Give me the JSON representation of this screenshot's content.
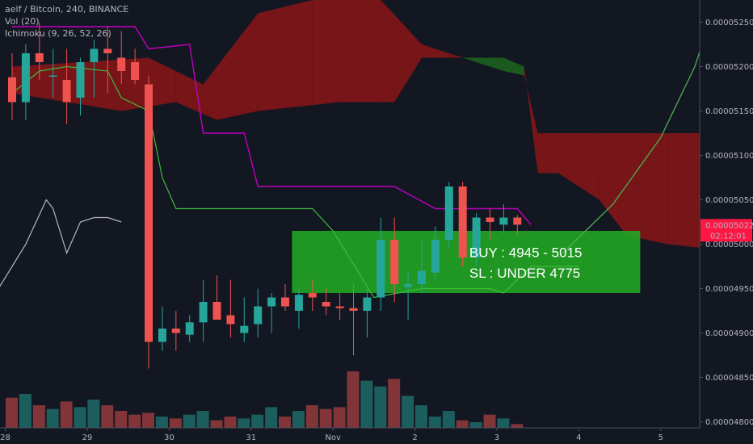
{
  "legend": {
    "symbol": "aelf / Bitcoin, 240, BINANCE",
    "vol": "Vol (20)",
    "ichimoku": "Ichimoku (9, 26, 52, 26)"
  },
  "colors": {
    "background": "#131722",
    "up": "#26a69a",
    "down": "#ef5350",
    "cloud_bear": "#7c1518",
    "cloud_bull": "#1b5e20",
    "tenkan": "#c000c0",
    "kijun": "#3cbc3c",
    "chikou": "#b2b5be",
    "zone": "#23a523",
    "price_tag": "#ff1744",
    "lagging": "#4caf50"
  },
  "chart_data": {
    "type": "candlestick",
    "symbol": "aelf / Bitcoin",
    "timeframe": "240",
    "exchange": "BINANCE",
    "y_axis": {
      "ylim": [
        4.795e-05,
        5.275e-05
      ],
      "ticks": [
        "0.00004800",
        "0.00004850",
        "0.00004900",
        "0.00004950",
        "0.00005000",
        "0.00005050",
        "0.00005100",
        "0.00005150",
        "0.00005200",
        "0.00005250"
      ]
    },
    "x_axis": {
      "ticks": [
        {
          "label": "28",
          "i": -0.5
        },
        {
          "label": "29",
          "i": 5.5
        },
        {
          "label": "30",
          "i": 11.5
        },
        {
          "label": "31",
          "i": 17.5
        },
        {
          "label": "Nov",
          "i": 23.5
        },
        {
          "label": "2",
          "i": 29.5
        },
        {
          "label": "3",
          "i": 35.5
        },
        {
          "label": "4",
          "i": 41.5
        },
        {
          "label": "5",
          "i": 47.5
        }
      ]
    },
    "current_price": {
      "value": 5.022e-05,
      "label": "0.00005022",
      "countdown": "02:12:01"
    },
    "candles": [
      [
        5.188e-05,
        5.215e-05,
        5.14e-05,
        5.16e-05
      ],
      [
        5.16e-05,
        5.225e-05,
        5.14e-05,
        5.215e-05
      ],
      [
        5.215e-05,
        5.25e-05,
        5.185e-05,
        5.205e-05
      ],
      [
        5.19e-05,
        5.22e-05,
        5.165e-05,
        5.19e-05
      ],
      [
        5.185e-05,
        5.22e-05,
        5.135e-05,
        5.16e-05
      ],
      [
        5.165e-05,
        5.21e-05,
        5.145e-05,
        5.205e-05
      ],
      [
        5.205e-05,
        5.23e-05,
        5.165e-05,
        5.22e-05
      ],
      [
        5.22e-05,
        5.245e-05,
        5.17e-05,
        5.215e-05
      ],
      [
        5.21e-05,
        5.24e-05,
        5.18e-05,
        5.195e-05
      ],
      [
        5.205e-05,
        5.22e-05,
        5.18e-05,
        5.185e-05
      ],
      [
        5.18e-05,
        5.19e-05,
        4.86e-05,
        4.89e-05
      ],
      [
        4.89e-05,
        4.93e-05,
        4.88e-05,
        4.905e-05
      ],
      [
        4.905e-05,
        4.925e-05,
        4.88e-05,
        4.9e-05
      ],
      [
        4.898e-05,
        4.92e-05,
        4.89e-05,
        4.912e-05
      ],
      [
        4.912e-05,
        4.96e-05,
        4.89e-05,
        4.935e-05
      ],
      [
        4.935e-05,
        4.965e-05,
        4.915e-05,
        4.915e-05
      ],
      [
        4.92e-05,
        4.96e-05,
        4.895e-05,
        4.91e-05
      ],
      [
        4.9e-05,
        4.94e-05,
        4.89e-05,
        4.908e-05
      ],
      [
        4.91e-05,
        4.95e-05,
        4.895e-05,
        4.93e-05
      ],
      [
        4.93e-05,
        4.945e-05,
        4.9e-05,
        4.94e-05
      ],
      [
        4.94e-05,
        4.955e-05,
        4.925e-05,
        4.93e-05
      ],
      [
        4.925e-05,
        4.95e-05,
        4.905e-05,
        4.943e-05
      ],
      [
        4.945e-05,
        4.96e-05,
        4.925e-05,
        4.94e-05
      ],
      [
        4.935e-05,
        4.95e-05,
        4.92e-05,
        4.93e-05
      ],
      [
        4.93e-05,
        4.945e-05,
        4.915e-05,
        4.928e-05
      ],
      [
        4.928e-05,
        4.955e-05,
        4.875e-05,
        4.925e-05
      ],
      [
        4.925e-05,
        4.95e-05,
        4.895e-05,
        4.94e-05
      ],
      [
        4.94e-05,
        5.03e-05,
        4.925e-05,
        5.005e-05
      ],
      [
        5.005e-05,
        5.03e-05,
        4.935e-05,
        4.955e-05
      ],
      [
        4.952e-05,
        4.97e-05,
        4.915e-05,
        4.955e-05
      ],
      [
        4.955e-05,
        5.005e-05,
        4.945e-05,
        4.97e-05
      ],
      [
        4.968e-05,
        5.02e-05,
        4.96e-05,
        5.005e-05
      ],
      [
        5.005e-05,
        5.07e-05,
        4.995e-05,
        5.065e-05
      ],
      [
        5.065e-05,
        5.07e-05,
        4.975e-05,
        4.985e-05
      ],
      [
        4.985e-05,
        5.035e-05,
        4.975e-05,
        5.03e-05
      ],
      [
        5.03e-05,
        5.04e-05,
        5.005e-05,
        5.025e-05
      ],
      [
        5.022e-05,
        5.045e-05,
        5.012e-05,
        5.03e-05
      ],
      [
        5.03e-05,
        5.033e-05,
        5.01e-05,
        5.022e-05
      ]
    ],
    "volume": [
      16,
      18,
      12,
      10,
      14,
      11,
      15,
      12,
      9,
      7,
      8,
      6,
      5,
      7,
      9,
      4,
      6,
      5,
      7,
      11,
      6,
      9,
      12,
      10,
      11,
      30,
      25,
      22,
      26,
      17,
      12,
      6,
      9,
      4,
      3,
      7,
      5,
      2
    ],
    "tenkan": [
      [
        0,
        5.245e-05
      ],
      [
        9,
        5.245e-05
      ],
      [
        10,
        5.22e-05
      ],
      [
        13,
        5.225e-05
      ],
      [
        14,
        5.125e-05
      ],
      [
        17,
        5.125e-05
      ],
      [
        18,
        5.065e-05
      ],
      [
        28,
        5.065e-05
      ],
      [
        31,
        5.04e-05
      ],
      [
        37,
        5.04e-05
      ],
      [
        38,
        5.022e-05
      ]
    ],
    "kijun": [
      [
        0,
        5.17e-05
      ],
      [
        2,
        5.195e-05
      ],
      [
        4,
        5.2e-05
      ],
      [
        7,
        5.195e-05
      ],
      [
        8,
        5.165e-05
      ],
      [
        10,
        5.15e-05
      ],
      [
        11,
        5.075e-05
      ],
      [
        12,
        5.04e-05
      ],
      [
        16,
        5.04e-05
      ],
      [
        22,
        5.04e-05
      ],
      [
        23.5,
        5.015e-05
      ],
      [
        26.5,
        4.94e-05
      ],
      [
        30,
        4.95e-05
      ],
      [
        35,
        4.95e-05
      ],
      [
        36,
        4.945e-05
      ],
      [
        38,
        4.975e-05
      ],
      [
        41.5,
        4.975e-05
      ]
    ],
    "chikou": [
      [
        -2,
        4.94e-05
      ],
      [
        -1,
        4.95e-05
      ],
      [
        0,
        4.975e-05
      ],
      [
        1,
        5e-05
      ],
      [
        2.5,
        5.05e-05
      ],
      [
        3,
        5.04e-05
      ],
      [
        4,
        4.99e-05
      ],
      [
        5,
        5.025e-05
      ],
      [
        6,
        5.03e-05
      ],
      [
        7,
        5.03e-05
      ],
      [
        8,
        5.025e-05
      ]
    ],
    "lagging_curve": [
      [
        40,
        4.985e-05
      ],
      [
        44,
        5.045e-05
      ],
      [
        47.5,
        5.12e-05
      ],
      [
        50,
        5.2e-05
      ],
      [
        51.5,
        5.27e-05
      ]
    ],
    "cloud": {
      "span_a": [
        [
          0,
          5.2e-05
        ],
        [
          10,
          5.21e-05
        ],
        [
          14,
          5.18e-05
        ],
        [
          18,
          5.26e-05
        ],
        [
          22,
          5.275e-05
        ],
        [
          27,
          5.275e-05
        ],
        [
          30,
          5.225e-05
        ],
        [
          33,
          5.21e-05
        ],
        [
          36,
          5.195e-05
        ],
        [
          37.5,
          5.19e-05
        ],
        [
          38.5,
          5.125e-05
        ],
        [
          46,
          5.125e-05
        ],
        [
          54,
          5.125e-05
        ]
      ],
      "span_b": [
        [
          0,
          5.17e-05
        ],
        [
          8,
          5.15e-05
        ],
        [
          12,
          5.16e-05
        ],
        [
          15,
          5.14e-05
        ],
        [
          18,
          5.15e-05
        ],
        [
          24,
          5.16e-05
        ],
        [
          28,
          5.16e-05
        ],
        [
          30,
          5.21e-05
        ],
        [
          32,
          5.21e-05
        ],
        [
          36,
          5.21e-05
        ],
        [
          37.5,
          5.2e-05
        ],
        [
          38.5,
          5.08e-05
        ],
        [
          40,
          5.08e-05
        ],
        [
          43,
          5.05e-05
        ],
        [
          45,
          5.01e-05
        ],
        [
          48,
          5e-05
        ],
        [
          51,
          4.995e-05
        ],
        [
          54,
          5e-05
        ]
      ]
    },
    "buy_zone": {
      "from_i": 20.5,
      "to_i": 46,
      "y_top": 5.015e-05,
      "y_bottom": 4.945e-05,
      "buy_text": "BUY : 4945 - 5015",
      "sl_text": "SL : UNDER 4775"
    }
  }
}
